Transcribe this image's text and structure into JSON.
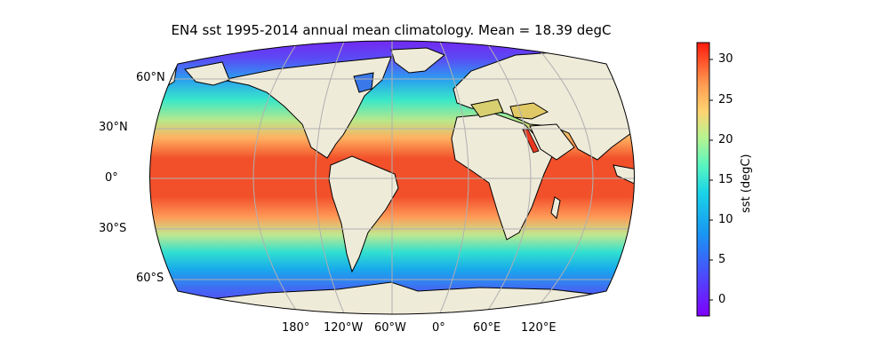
{
  "title": "EN4 sst 1995-2014 annual mean climatology. Mean = 18.39 degC",
  "lat_labels": [
    "60°N",
    "30°N",
    "0°",
    "30°S",
    "60°S"
  ],
  "lon_labels": [
    "180°",
    "120°W",
    "60°W",
    "0°",
    "60°E",
    "120°E"
  ],
  "colorbar": {
    "label": "sst (degC)",
    "ticks": [
      "30",
      "25",
      "20",
      "15",
      "10",
      "5",
      "0"
    ],
    "range": [
      -2,
      32
    ],
    "colormap": "rainbow"
  },
  "colors": {
    "land": "#efebd9",
    "tropics": "#f2502a",
    "polar": "#7a1ef0"
  }
}
